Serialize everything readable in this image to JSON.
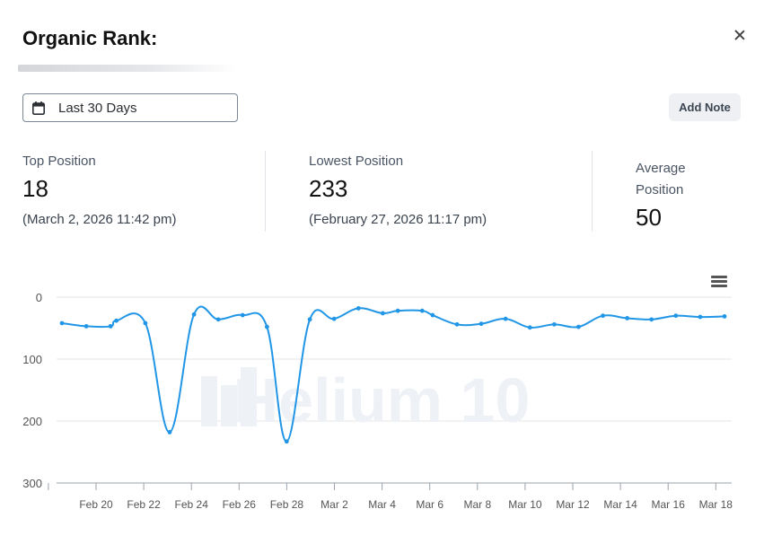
{
  "header": {
    "title": "Organic Rank:"
  },
  "controls": {
    "date_range": "Last 30 Days",
    "add_note": "Add Note"
  },
  "stats": {
    "top": {
      "label": "Top Position",
      "value": "18",
      "date": "(March 2, 2026 11:42 pm)"
    },
    "lowest": {
      "label": "Lowest Position",
      "value": "233",
      "date": "(February 27, 2026 11:17 pm)"
    },
    "average": {
      "label_line1": "Average",
      "label_line2": "Position",
      "value": "50"
    }
  },
  "watermark": "Helium 10",
  "colors": {
    "line": "#2196e6",
    "grid": "#e6e6e6",
    "axis_text": "#555555"
  },
  "chart_data": {
    "type": "line",
    "title": "",
    "xlabel": "",
    "ylabel": "",
    "y_reversed": true,
    "ylim": [
      0,
      300
    ],
    "yticks": [
      0,
      100,
      200,
      300
    ],
    "x_tick_labels": [
      "Feb 20",
      "Feb 22",
      "Feb 24",
      "Feb 26",
      "Feb 28",
      "Mar 2",
      "Mar 4",
      "Mar 6",
      "Mar 8",
      "Mar 10",
      "Mar 12",
      "Mar 14",
      "Mar 16",
      "Mar 18"
    ],
    "grid": true,
    "series": [
      {
        "points": [
          {
            "x": 18.25,
            "y": 42
          },
          {
            "x": 19.3,
            "y": 47
          },
          {
            "x": 20.35,
            "y": 47
          },
          {
            "x": 20.6,
            "y": 38
          },
          {
            "x": 21.85,
            "y": 42
          },
          {
            "x": 22.9,
            "y": 218
          },
          {
            "x": 23.95,
            "y": 28
          },
          {
            "x": 25.0,
            "y": 36
          },
          {
            "x": 26.05,
            "y": 29
          },
          {
            "x": 27.1,
            "y": 48
          },
          {
            "x": 27.95,
            "y": 233
          },
          {
            "x": 28.95,
            "y": 36
          },
          {
            "x": 30.0,
            "y": 35
          },
          {
            "x": 31.05,
            "y": 18
          },
          {
            "x": 32.1,
            "y": 26
          },
          {
            "x": 32.75,
            "y": 22
          },
          {
            "x": 33.8,
            "y": 22
          },
          {
            "x": 34.25,
            "y": 29
          },
          {
            "x": 35.3,
            "y": 44
          },
          {
            "x": 36.35,
            "y": 43
          },
          {
            "x": 37.4,
            "y": 35
          },
          {
            "x": 38.45,
            "y": 49
          },
          {
            "x": 39.5,
            "y": 44
          },
          {
            "x": 40.55,
            "y": 48
          },
          {
            "x": 41.6,
            "y": 30
          },
          {
            "x": 42.65,
            "y": 34
          },
          {
            "x": 43.7,
            "y": 36
          },
          {
            "x": 44.75,
            "y": 30
          },
          {
            "x": 45.8,
            "y": 32
          },
          {
            "x": 46.85,
            "y": 31
          }
        ]
      }
    ]
  }
}
